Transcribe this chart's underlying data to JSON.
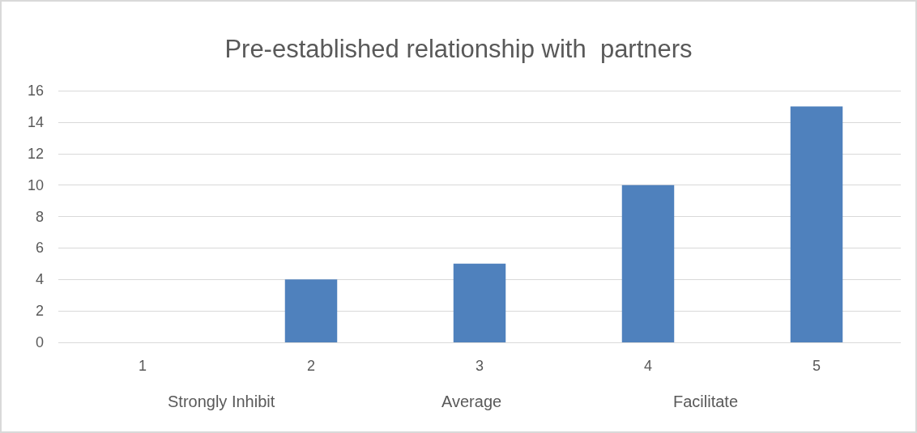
{
  "chart_data": {
    "type": "bar",
    "title": "Pre-established relationship with  partners",
    "categories": [
      "1",
      "2",
      "3",
      "4",
      "5"
    ],
    "values": [
      0,
      4,
      5,
      10,
      15
    ],
    "color": "#4f81bd",
    "ylim": [
      0,
      16
    ],
    "yticks": [
      0,
      2,
      4,
      6,
      8,
      10,
      12,
      14,
      16
    ],
    "grid": "y",
    "annotations": [
      "Strongly Inhibit",
      "Average",
      "Facilitate"
    ]
  }
}
